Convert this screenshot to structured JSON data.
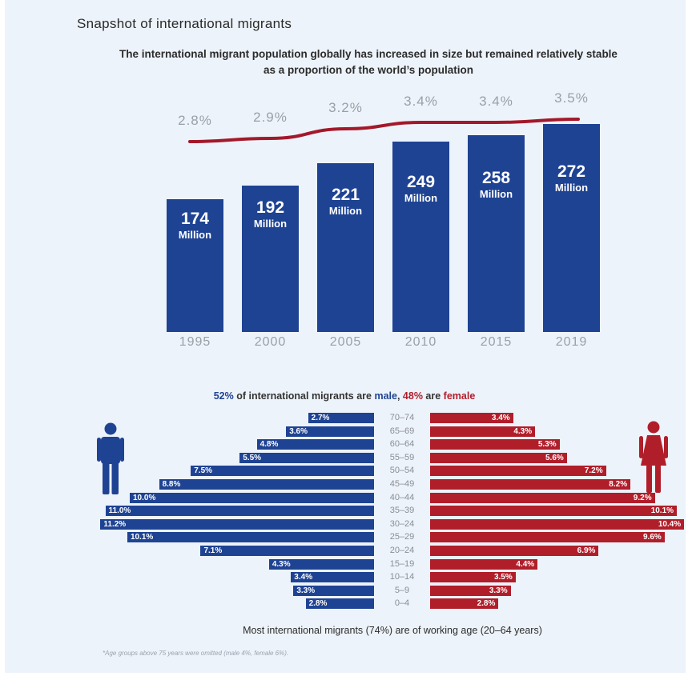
{
  "heading": "Snapshot of international migrants",
  "subheading": "The international migrant population globally has increased in size but remained relatively stable as a proportion of the world’s population",
  "colors": {
    "male": "#1f4393",
    "female": "#b01e2a",
    "line": "#a3192a",
    "muted": "#9aa0a6"
  },
  "icons": {
    "male": "male-person-icon",
    "female": "female-person-icon"
  },
  "gender_split": {
    "male_pct": "52%",
    "male_text": " of international migrants are ",
    "male_word": "male",
    "sep": ", ",
    "female_pct": "48%",
    "female_text": " are ",
    "female_word": "female"
  },
  "footer": "Most international migrants (74%) are of working age (20–64 years)",
  "footnote": "*Age groups above 75 years were omitted (male 4%, female 6%).",
  "chart_data": [
    {
      "type": "bar",
      "categories": [
        "1995",
        "2000",
        "2005",
        "2010",
        "2015",
        "2019"
      ],
      "values": [
        174,
        192,
        221,
        249,
        258,
        272
      ],
      "value_labels": [
        "174",
        "192",
        "221",
        "249",
        "258",
        "272"
      ],
      "unit_label": "Million",
      "ylim": [
        0,
        280
      ],
      "overlay_line": {
        "values": [
          2.8,
          2.9,
          3.2,
          3.4,
          3.4,
          3.5
        ],
        "labels": [
          "2.8%",
          "2.9%",
          "3.2%",
          "3.4%",
          "3.4%",
          "3.5%"
        ]
      }
    },
    {
      "type": "bar",
      "orientation": "horizontal-pyramid",
      "categories": [
        "70–74",
        "65–69",
        "60–64",
        "55–59",
        "50–54",
        "45–49",
        "40–44",
        "35–39",
        "30–24",
        "25–29",
        "20–24",
        "15–19",
        "10–14",
        "5–9",
        "0–4"
      ],
      "series": [
        {
          "name": "male",
          "values": [
            2.7,
            3.6,
            4.8,
            5.5,
            7.5,
            8.8,
            10.0,
            11.0,
            11.2,
            10.1,
            7.1,
            4.3,
            3.4,
            3.3,
            2.8
          ],
          "labels": [
            "2.7%",
            "3.6%",
            "4.8%",
            "5.5%",
            "7.5%",
            "8.8%",
            "10.0%",
            "11.0%",
            "11.2%",
            "10.1%",
            "7.1%",
            "4.3%",
            "3.4%",
            "3.3%",
            "2.8%"
          ]
        },
        {
          "name": "female",
          "values": [
            3.4,
            4.3,
            5.3,
            5.6,
            7.2,
            8.2,
            9.2,
            10.1,
            10.4,
            9.6,
            6.9,
            4.4,
            3.5,
            3.3,
            2.8
          ],
          "labels": [
            "3.4%",
            "4.3%",
            "5.3%",
            "5.6%",
            "7.2%",
            "8.2%",
            "9.2%",
            "10.1%",
            "10.4%",
            "9.6%",
            "6.9%",
            "4.4%",
            "3.5%",
            "3.3%",
            "2.8%"
          ]
        }
      ]
    }
  ]
}
